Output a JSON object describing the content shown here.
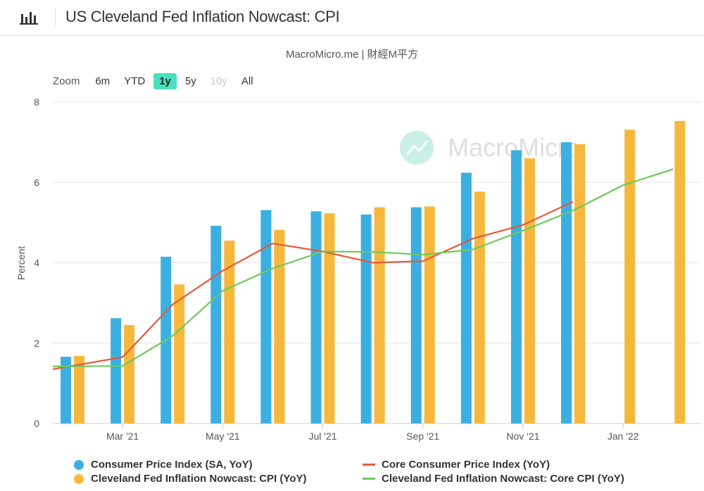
{
  "header": {
    "title": "US Cleveland Fed Inflation Nowcast: CPI",
    "icon": "bar-chart-icon"
  },
  "source": "MacroMicro.me | 財經M平方",
  "watermark": "MacroMicro",
  "zoom": {
    "label": "Zoom",
    "buttons": [
      {
        "label": "6m",
        "state": "normal"
      },
      {
        "label": "YTD",
        "state": "normal"
      },
      {
        "label": "1y",
        "state": "active"
      },
      {
        "label": "5y",
        "state": "normal"
      },
      {
        "label": "10y",
        "state": "disabled"
      },
      {
        "label": "All",
        "state": "normal"
      }
    ]
  },
  "chart_data": {
    "type": "bar",
    "ylabel": "Percent",
    "ylim": [
      0,
      8
    ],
    "yticks": [
      0,
      2,
      4,
      6,
      8
    ],
    "grid": true,
    "legend_position": "bottom",
    "x_tick_labels": [
      "Mar '21",
      "May '21",
      "Jul '21",
      "Sep '21",
      "Nov '21",
      "Jan '22"
    ],
    "categories": [
      "2021-02",
      "2021-03",
      "2021-04",
      "2021-05",
      "2021-06",
      "2021-07",
      "2021-08",
      "2021-09",
      "2021-10",
      "2021-11",
      "2021-12",
      "2022-01",
      "2022-02"
    ],
    "series": [
      {
        "name": "Consumer Price Index (SA, YoY)",
        "kind": "bar",
        "color": "#3bafe0",
        "values": [
          1.66,
          2.62,
          4.15,
          4.92,
          5.31,
          5.28,
          5.2,
          5.38,
          6.24,
          6.8,
          7.0,
          null,
          null
        ]
      },
      {
        "name": "Cleveland Fed Inflation Nowcast: CPI (YoY)",
        "kind": "bar",
        "color": "#f6b83c",
        "values": [
          1.68,
          2.45,
          3.46,
          4.55,
          4.82,
          5.23,
          5.38,
          5.4,
          5.77,
          6.6,
          6.95,
          7.31,
          7.53
        ]
      },
      {
        "name": "Core Consumer Price Index (YoY)",
        "kind": "line",
        "color": "#e45a3c",
        "values": [
          1.35,
          1.65,
          2.96,
          3.8,
          4.48,
          4.28,
          4.0,
          4.04,
          4.6,
          4.94,
          5.52,
          null,
          null
        ]
      },
      {
        "name": "Cleveland Fed Inflation Nowcast: Core CPI (YoY)",
        "kind": "line",
        "color": "#6dc95c",
        "values": [
          1.42,
          1.43,
          2.18,
          3.3,
          3.86,
          4.28,
          4.27,
          4.2,
          4.33,
          4.8,
          5.3,
          5.93,
          6.33
        ]
      }
    ]
  }
}
